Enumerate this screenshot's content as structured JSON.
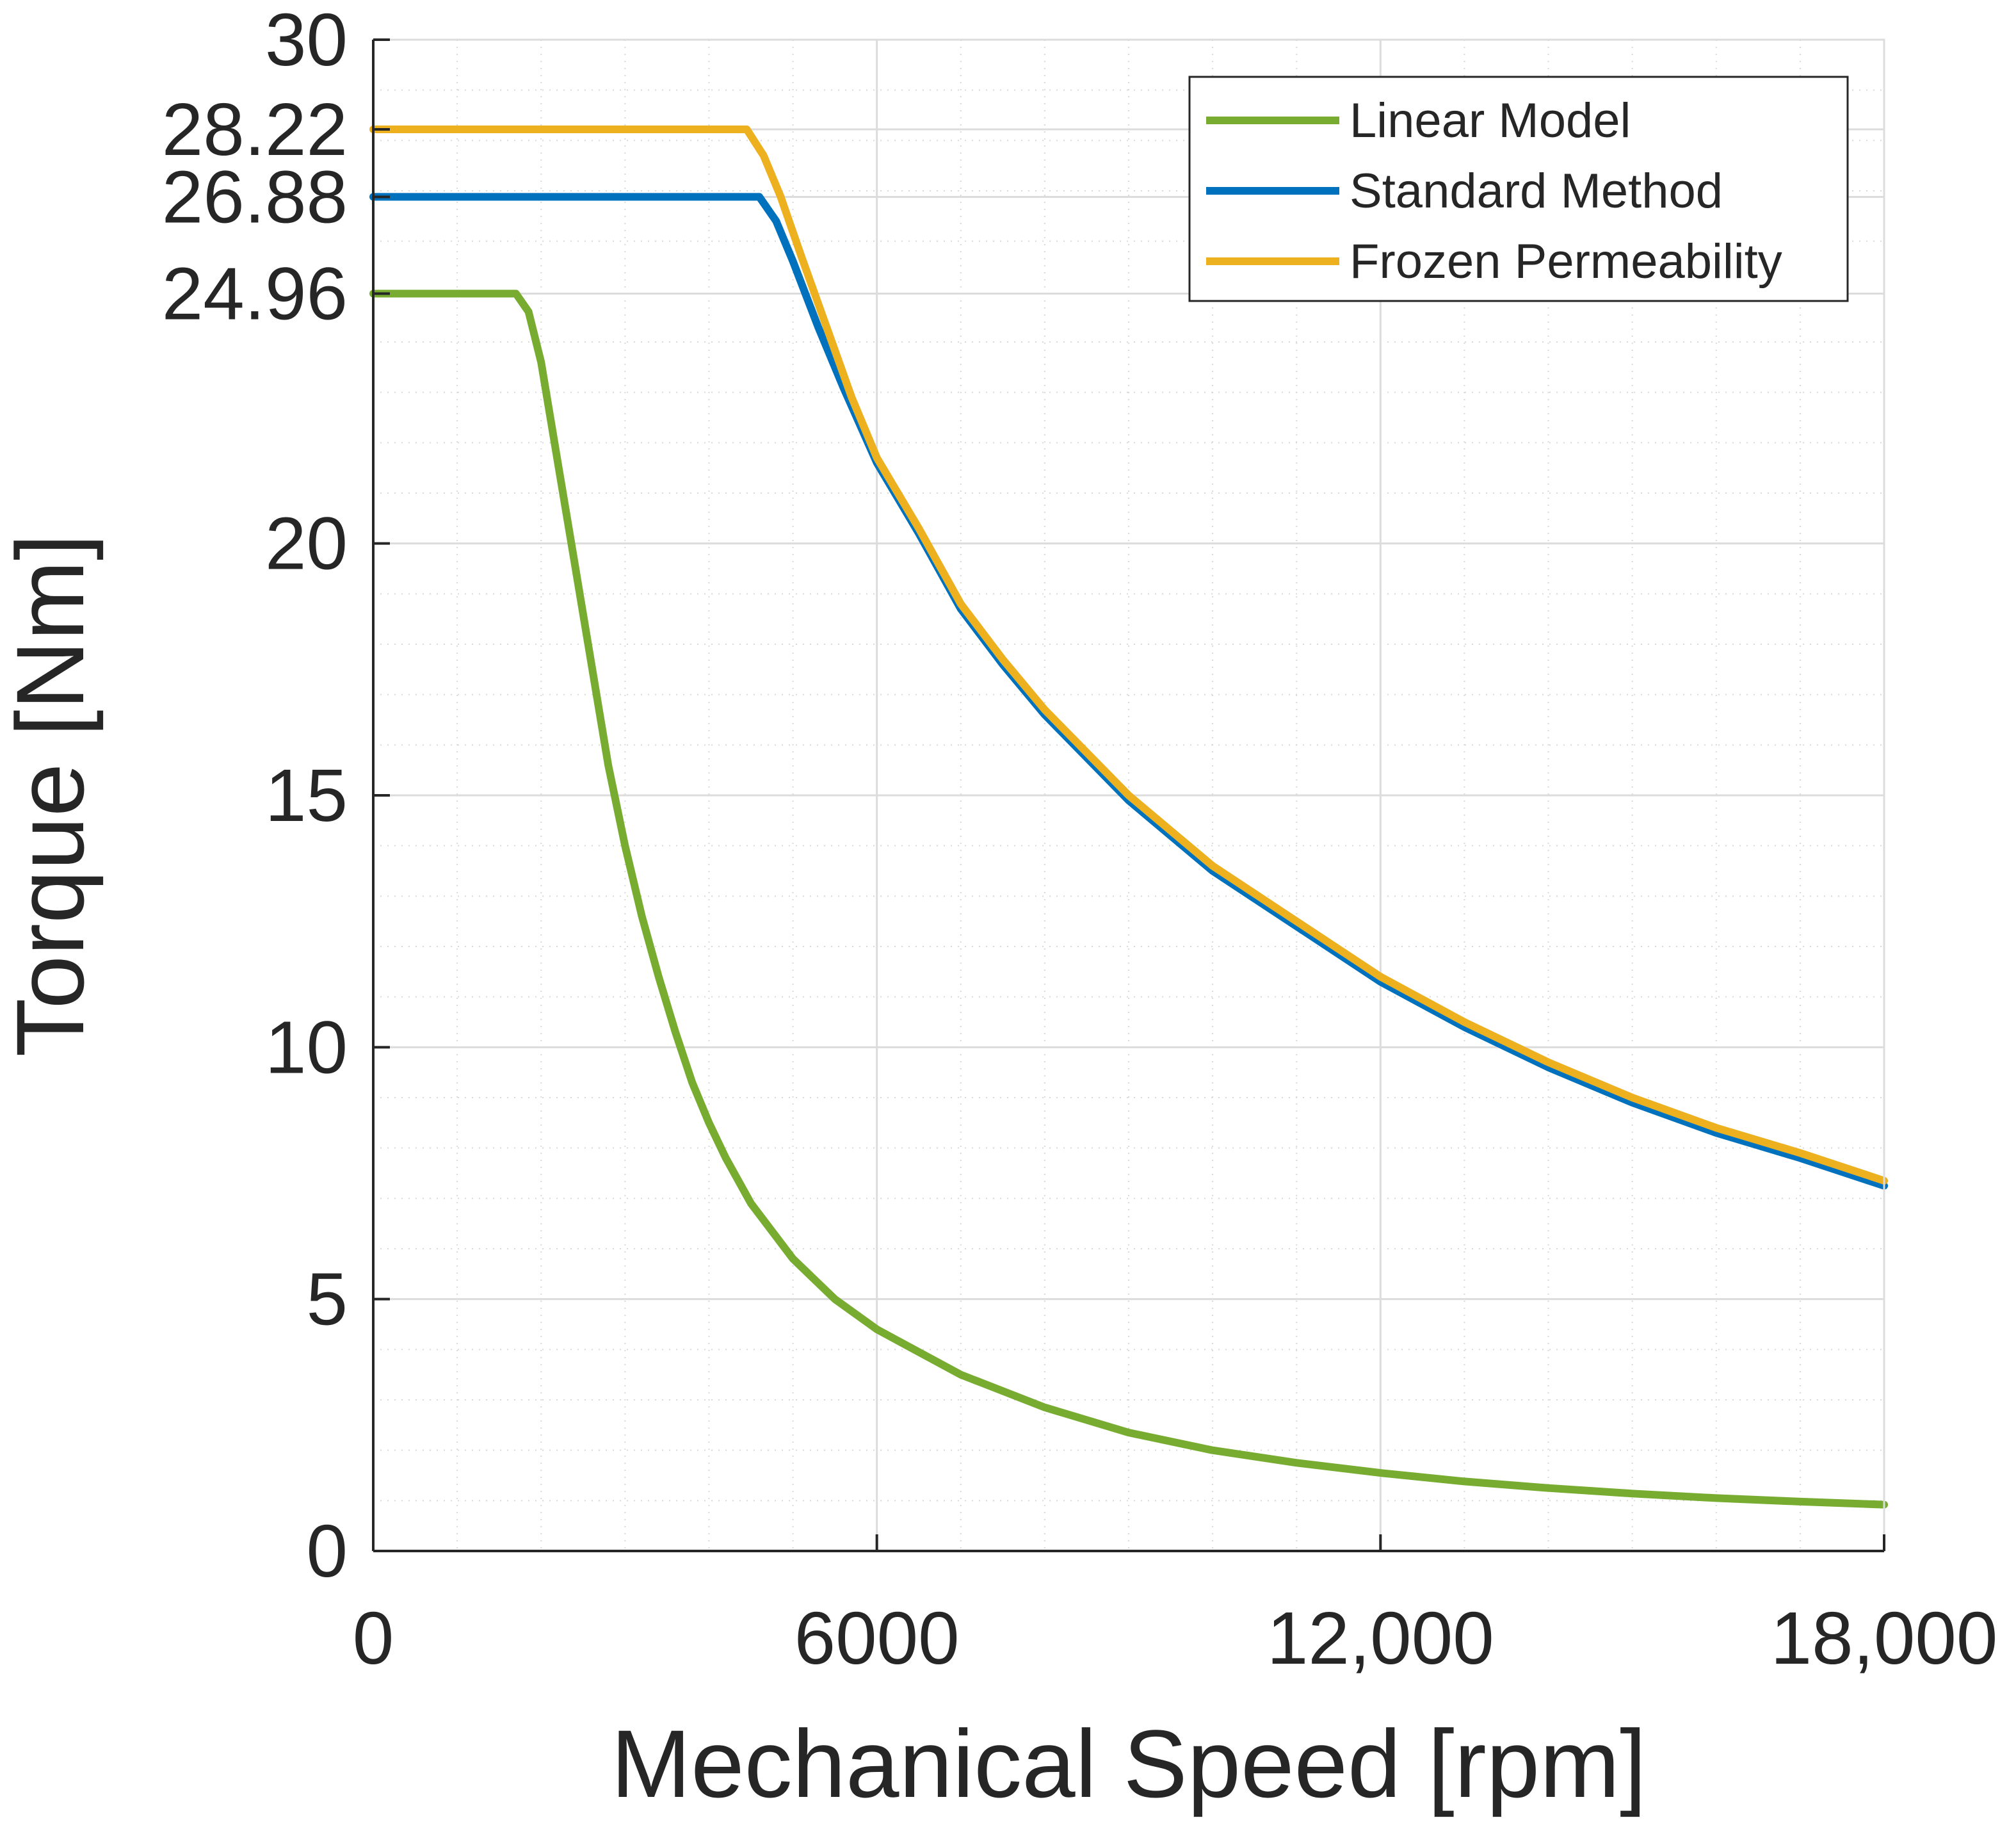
{
  "chart_data": {
    "type": "line",
    "title": "",
    "xlabel": "Mechanical Speed [rpm]",
    "ylabel": "Torque [Nm]",
    "xlim": [
      0,
      18000
    ],
    "ylim": [
      0,
      30
    ],
    "grid": true,
    "minor_grid": true,
    "legend_position": "top-right",
    "x_ticks": [
      0,
      6000,
      12000,
      18000
    ],
    "x_tick_labels": [
      "0",
      "6000",
      "12,000",
      "18,000"
    ],
    "y_ticks": [
      0,
      5,
      10,
      15,
      20,
      24.96,
      26.88,
      28.22,
      30
    ],
    "y_tick_labels": [
      "0",
      "5",
      "10",
      "15",
      "20",
      "24.96",
      "26.88",
      "28.22",
      "30"
    ],
    "series": [
      {
        "name": "Linear Model",
        "color": "#77AC30",
        "x": [
          0,
          1700,
          1850,
          2000,
          2200,
          2400,
          2600,
          2800,
          3000,
          3200,
          3400,
          3600,
          3800,
          4000,
          4200,
          4500,
          5000,
          5500,
          6000,
          7000,
          8000,
          9000,
          10000,
          11000,
          12000,
          13000,
          14000,
          15000,
          16000,
          17000,
          18000
        ],
        "values": [
          24.96,
          24.96,
          24.6,
          23.6,
          21.6,
          19.6,
          17.6,
          15.6,
          14.0,
          12.6,
          11.4,
          10.3,
          9.3,
          8.5,
          7.8,
          6.9,
          5.8,
          5.0,
          4.4,
          3.5,
          2.85,
          2.35,
          2.0,
          1.75,
          1.55,
          1.38,
          1.25,
          1.14,
          1.05,
          0.98,
          0.92
        ]
      },
      {
        "name": "Standard Method",
        "color": "#0072BD",
        "x": [
          0,
          4600,
          4800,
          5000,
          5300,
          5600,
          6000,
          6500,
          7000,
          7500,
          8000,
          9000,
          10000,
          11000,
          12000,
          13000,
          14000,
          15000,
          16000,
          17000,
          18000
        ],
        "values": [
          26.88,
          26.88,
          26.4,
          25.6,
          24.3,
          23.1,
          21.6,
          20.2,
          18.7,
          17.6,
          16.6,
          14.9,
          13.5,
          12.4,
          11.3,
          10.4,
          9.6,
          8.9,
          8.3,
          7.8,
          7.25
        ]
      },
      {
        "name": "Frozen Permeability",
        "color": "#EDB120",
        "x": [
          0,
          4450,
          4650,
          4850,
          5100,
          5400,
          5700,
          6000,
          6500,
          7000,
          7500,
          8000,
          9000,
          10000,
          11000,
          12000,
          13000,
          14000,
          15000,
          16000,
          17000,
          18000
        ],
        "values": [
          28.22,
          28.22,
          27.7,
          26.9,
          25.7,
          24.3,
          22.9,
          21.7,
          20.3,
          18.8,
          17.7,
          16.7,
          15.0,
          13.6,
          12.5,
          11.4,
          10.5,
          9.7,
          9.0,
          8.4,
          7.9,
          7.35
        ]
      }
    ]
  }
}
